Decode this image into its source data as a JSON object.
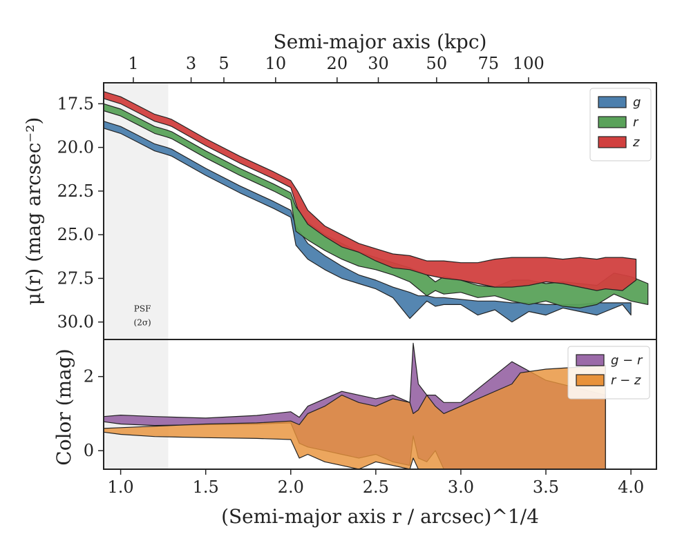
{
  "chart_data": [
    {
      "type": "area",
      "panel": "surface-brightness",
      "top_axis": {
        "label": "Semi-major axis (kpc)",
        "tick_labels": [
          "1",
          "3",
          "5",
          "10",
          "20",
          "30",
          "50",
          "75",
          "100"
        ],
        "tick_values_kpc": [
          1,
          3,
          5,
          10,
          20,
          30,
          50,
          75,
          100
        ]
      },
      "ylabel": "μ(r) (mag arcsec⁻²)",
      "ylim": [
        31.0,
        16.3
      ],
      "y_ticks": [
        17.5,
        20.0,
        22.5,
        25.0,
        27.5,
        30.0
      ],
      "y_tick_labels": [
        "17.5",
        "20.0",
        "22.5",
        "25.0",
        "27.5",
        "30.0"
      ],
      "y_inverted": true,
      "psf_region": {
        "x_range": [
          0.9,
          1.28
        ],
        "label_line1": "PSF",
        "label_line2": "(2σ)"
      },
      "legend_position": "top-right",
      "series": [
        {
          "name": "g",
          "color": "#4c7fad",
          "x": [
            0.9,
            1.0,
            1.1,
            1.2,
            1.27,
            1.3,
            1.5,
            1.7,
            1.9,
            2.0,
            2.03,
            2.1,
            2.2,
            2.3,
            2.4,
            2.5,
            2.6,
            2.7,
            2.75,
            2.8,
            2.85,
            2.9,
            3.0,
            3.1,
            3.2,
            3.3,
            3.4,
            3.5,
            3.6,
            3.7,
            3.8,
            3.85,
            3.95,
            4.0
          ],
          "y1": [
            18.5,
            18.8,
            19.3,
            19.8,
            20.0,
            20.1,
            21.2,
            22.2,
            23.1,
            23.6,
            24.5,
            25.5,
            26.2,
            26.8,
            27.3,
            27.6,
            28.0,
            28.3,
            28.5,
            28.5,
            28.6,
            28.6,
            28.7,
            28.8,
            28.8,
            28.9,
            28.9,
            29.0,
            29.0,
            29.0,
            28.9,
            28.9,
            28.9,
            28.9
          ],
          "y2": [
            18.9,
            19.2,
            19.7,
            20.2,
            20.4,
            20.5,
            21.6,
            22.6,
            23.5,
            24.0,
            25.6,
            26.4,
            27.0,
            27.5,
            27.8,
            28.1,
            28.6,
            29.8,
            29.3,
            28.8,
            29.1,
            29.0,
            29.0,
            29.6,
            29.3,
            30.0,
            29.4,
            29.6,
            29.2,
            29.4,
            29.6,
            29.4,
            29.0,
            29.6
          ]
        },
        {
          "name": "r",
          "color": "#5aa25a",
          "x": [
            0.9,
            1.0,
            1.1,
            1.2,
            1.27,
            1.3,
            1.5,
            1.7,
            1.9,
            2.0,
            2.03,
            2.1,
            2.2,
            2.3,
            2.4,
            2.5,
            2.6,
            2.7,
            2.8,
            2.85,
            2.9,
            3.0,
            3.1,
            3.2,
            3.3,
            3.4,
            3.5,
            3.6,
            3.7,
            3.8,
            3.9,
            4.0,
            4.1
          ],
          "y1": [
            17.5,
            17.8,
            18.3,
            18.8,
            19.0,
            19.1,
            20.2,
            21.2,
            22.1,
            22.6,
            23.4,
            24.3,
            25.0,
            25.5,
            26.0,
            26.3,
            26.6,
            26.9,
            27.3,
            27.7,
            27.4,
            27.6,
            27.9,
            28.0,
            27.6,
            27.6,
            27.8,
            27.7,
            27.8,
            27.9,
            27.2,
            27.4,
            27.8
          ],
          "y2": [
            17.9,
            18.2,
            18.7,
            19.2,
            19.4,
            19.5,
            20.6,
            21.6,
            22.5,
            23.0,
            24.8,
            25.3,
            25.9,
            26.4,
            26.8,
            27.0,
            27.3,
            27.7,
            28.5,
            28.2,
            28.4,
            28.3,
            28.6,
            28.5,
            28.8,
            29.0,
            28.8,
            29.1,
            29.2,
            29.0,
            28.4,
            28.8,
            29.0
          ]
        },
        {
          "name": "z",
          "color": "#d1403f",
          "x": [
            0.9,
            1.0,
            1.1,
            1.2,
            1.27,
            1.3,
            1.5,
            1.7,
            1.9,
            2.0,
            2.04,
            2.1,
            2.2,
            2.3,
            2.4,
            2.5,
            2.6,
            2.7,
            2.8,
            2.9,
            3.0,
            3.1,
            3.2,
            3.3,
            3.4,
            3.5,
            3.6,
            3.7,
            3.8,
            3.85,
            3.95,
            4.03
          ],
          "y1": [
            16.8,
            17.1,
            17.6,
            18.1,
            18.3,
            18.4,
            19.5,
            20.5,
            21.4,
            21.9,
            22.5,
            23.6,
            24.5,
            25.0,
            25.5,
            25.8,
            26.1,
            26.2,
            26.5,
            26.5,
            26.6,
            26.6,
            26.4,
            26.3,
            26.3,
            26.3,
            26.4,
            26.3,
            26.4,
            26.3,
            26.3,
            26.4
          ],
          "y2": [
            17.2,
            17.5,
            18.0,
            18.5,
            18.7,
            18.8,
            19.9,
            20.9,
            21.8,
            22.3,
            23.5,
            24.4,
            25.1,
            25.7,
            26.0,
            26.5,
            26.9,
            27.0,
            27.3,
            27.5,
            27.6,
            27.8,
            28.0,
            28.0,
            27.9,
            27.7,
            27.8,
            28.0,
            28.2,
            28.1,
            28.2,
            27.6
          ]
        }
      ]
    },
    {
      "type": "area",
      "panel": "color-profile",
      "xlabel": "(Semi-major axis r / arcsec)^1/4",
      "xlim": [
        0.9,
        4.15
      ],
      "x_ticks": [
        1.0,
        1.5,
        2.0,
        2.5,
        3.0,
        3.5,
        4.0
      ],
      "x_tick_labels": [
        "1.0",
        "1.5",
        "2.0",
        "2.5",
        "3.0",
        "3.5",
        "4.0"
      ],
      "ylabel": "Color (mag)",
      "ylim": [
        -0.5,
        3.0
      ],
      "y_ticks": [
        0,
        2
      ],
      "y_tick_labels": [
        "0",
        "2"
      ],
      "legend_position": "top-right",
      "series": [
        {
          "name": "g − r",
          "color": "#9b6aa8",
          "x": [
            0.9,
            1.0,
            1.2,
            1.5,
            1.8,
            2.0,
            2.05,
            2.1,
            2.2,
            2.3,
            2.4,
            2.5,
            2.6,
            2.7,
            2.72,
            2.75,
            2.8,
            2.85,
            2.9,
            3.0,
            3.3,
            3.5,
            3.85
          ],
          "y1": [
            0.92,
            0.96,
            0.92,
            0.88,
            0.95,
            1.05,
            0.9,
            1.2,
            1.4,
            1.6,
            1.5,
            1.4,
            1.5,
            1.3,
            2.9,
            1.8,
            1.5,
            1.5,
            1.3,
            1.3,
            2.4,
            1.9,
            1.5
          ],
          "y2": [
            0.78,
            0.72,
            0.68,
            0.7,
            0.72,
            0.75,
            0.2,
            0.1,
            0.0,
            -0.1,
            -0.2,
            -0.1,
            -0.3,
            -0.4,
            0.4,
            -0.2,
            -0.3,
            0.0,
            -0.5,
            -0.5,
            -0.5,
            -0.5,
            -0.5
          ]
        },
        {
          "name": "r − z",
          "color": "#e8923a",
          "x": [
            0.9,
            1.0,
            1.2,
            1.5,
            1.8,
            2.0,
            2.05,
            2.1,
            2.2,
            2.3,
            2.4,
            2.5,
            2.6,
            2.7,
            2.72,
            2.75,
            2.8,
            2.85,
            2.9,
            3.0,
            3.3,
            3.35,
            3.5,
            3.85
          ],
          "y1": [
            0.6,
            0.62,
            0.66,
            0.72,
            0.75,
            0.8,
            0.7,
            1.0,
            1.2,
            1.5,
            1.3,
            1.2,
            1.4,
            1.3,
            1.0,
            1.1,
            1.5,
            1.2,
            1.0,
            1.2,
            1.8,
            2.1,
            2.2,
            2.3
          ],
          "y2": [
            0.5,
            0.44,
            0.38,
            0.35,
            0.33,
            0.3,
            -0.2,
            -0.1,
            -0.3,
            -0.4,
            -0.5,
            -0.3,
            -0.4,
            -0.5,
            -0.2,
            -0.5,
            -0.5,
            -0.5,
            -0.5,
            -0.5,
            -0.5,
            -0.5,
            -0.5,
            -0.5
          ]
        }
      ]
    }
  ]
}
